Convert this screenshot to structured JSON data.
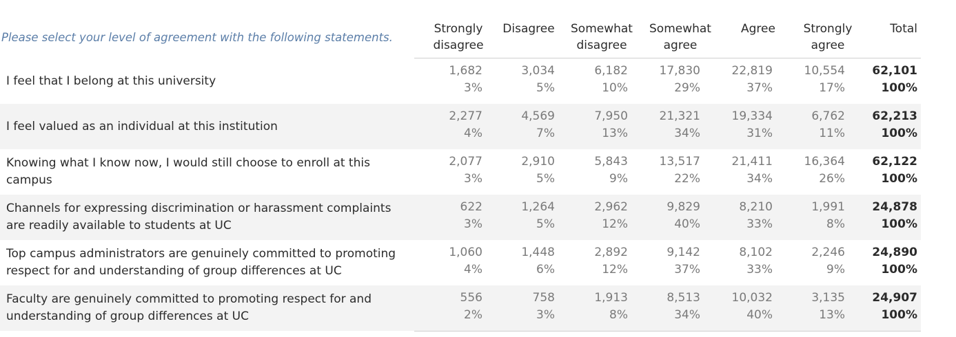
{
  "chart_data": {
    "type": "table",
    "title": "Please select your level of agreement with the following statements.",
    "columns": [
      "Strongly\ndisagree",
      "Disagree",
      "Somewhat\ndisagree",
      "Somewhat\nagree",
      "Agree",
      "Strongly\nagree",
      "Total"
    ],
    "rows": [
      {
        "label": "I feel that I belong at this university",
        "counts": [
          "1,682",
          "3,034",
          "6,182",
          "17,830",
          "22,819",
          "10,554",
          "62,101"
        ],
        "percents": [
          "3%",
          "5%",
          "10%",
          "29%",
          "37%",
          "17%",
          "100%"
        ]
      },
      {
        "label": "I feel valued as an individual at this institution",
        "counts": [
          "2,277",
          "4,569",
          "7,950",
          "21,321",
          "19,334",
          "6,762",
          "62,213"
        ],
        "percents": [
          "4%",
          "7%",
          "13%",
          "34%",
          "31%",
          "11%",
          "100%"
        ]
      },
      {
        "label": "Knowing what I know now, I would still choose to enroll at this campus",
        "counts": [
          "2,077",
          "2,910",
          "5,843",
          "13,517",
          "21,411",
          "16,364",
          "62,122"
        ],
        "percents": [
          "3%",
          "5%",
          "9%",
          "22%",
          "34%",
          "26%",
          "100%"
        ]
      },
      {
        "label": "Channels for expressing discrimination or harassment complaints are readily available to students at UC",
        "counts": [
          "622",
          "1,264",
          "2,962",
          "9,829",
          "8,210",
          "1,991",
          "24,878"
        ],
        "percents": [
          "3%",
          "5%",
          "12%",
          "40%",
          "33%",
          "8%",
          "100%"
        ]
      },
      {
        "label": "Top campus administrators are genuinely committed to promoting respect for and understanding of group differences at  UC",
        "counts": [
          "1,060",
          "1,448",
          "2,892",
          "9,142",
          "8,102",
          "2,246",
          "24,890"
        ],
        "percents": [
          "4%",
          "6%",
          "12%",
          "37%",
          "33%",
          "9%",
          "100%"
        ]
      },
      {
        "label": "Faculty are genuinely committed to promoting respect for and understanding of group differences at UC",
        "counts": [
          "556",
          "758",
          "1,913",
          "8,513",
          "10,032",
          "3,135",
          "24,907"
        ],
        "percents": [
          "2%",
          "3%",
          "8%",
          "34%",
          "40%",
          "13%",
          "100%"
        ]
      }
    ]
  },
  "colors": {
    "question_text": "#5b7ea8",
    "header_text": "#2b2b2b",
    "value_text": "#7a7a7a",
    "shaded_row": "#f3f3f3",
    "rule": "#cfcfcf"
  }
}
